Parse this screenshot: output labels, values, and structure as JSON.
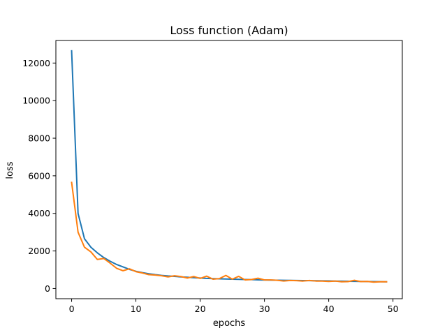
{
  "chart_data": {
    "type": "line",
    "title": "Loss function (Adam)",
    "xlabel": "epochs",
    "ylabel": "loss",
    "xlim": [
      -2.45,
      51.45
    ],
    "ylim": [
      -540,
      13200
    ],
    "xticks": [
      0,
      10,
      20,
      30,
      40,
      50
    ],
    "yticks": [
      0,
      2000,
      4000,
      6000,
      8000,
      10000,
      12000
    ],
    "grid": false,
    "legend": "none",
    "x": [
      0,
      1,
      2,
      3,
      4,
      5,
      6,
      7,
      8,
      9,
      10,
      11,
      12,
      13,
      14,
      15,
      16,
      17,
      18,
      19,
      20,
      21,
      22,
      23,
      24,
      25,
      26,
      27,
      28,
      29,
      30,
      31,
      32,
      33,
      34,
      35,
      36,
      37,
      38,
      39,
      40,
      41,
      42,
      43,
      44,
      45,
      46,
      47,
      48,
      49
    ],
    "series": [
      {
        "color": "#1f77b4",
        "values": [
          12650,
          4000,
          2650,
          2200,
          1900,
          1650,
          1450,
          1280,
          1150,
          1020,
          920,
          850,
          790,
          740,
          700,
          670,
          650,
          620,
          600,
          580,
          560,
          540,
          530,
          520,
          510,
          500,
          490,
          480,
          475,
          465,
          455,
          450,
          445,
          440,
          435,
          430,
          425,
          420,
          415,
          410,
          405,
          400,
          395,
          390,
          385,
          380,
          375,
          370,
          365,
          360
        ]
      },
      {
        "color": "#ff7f0e",
        "values": [
          5650,
          3000,
          2200,
          1950,
          1550,
          1600,
          1350,
          1080,
          950,
          1050,
          900,
          830,
          740,
          720,
          680,
          620,
          680,
          640,
          560,
          640,
          540,
          660,
          500,
          530,
          700,
          500,
          650,
          460,
          480,
          550,
          460,
          460,
          440,
          400,
          430,
          420,
          400,
          430,
          400,
          400,
          380,
          400,
          360,
          370,
          440,
          370,
          380,
          340,
          360,
          360
        ]
      }
    ]
  }
}
